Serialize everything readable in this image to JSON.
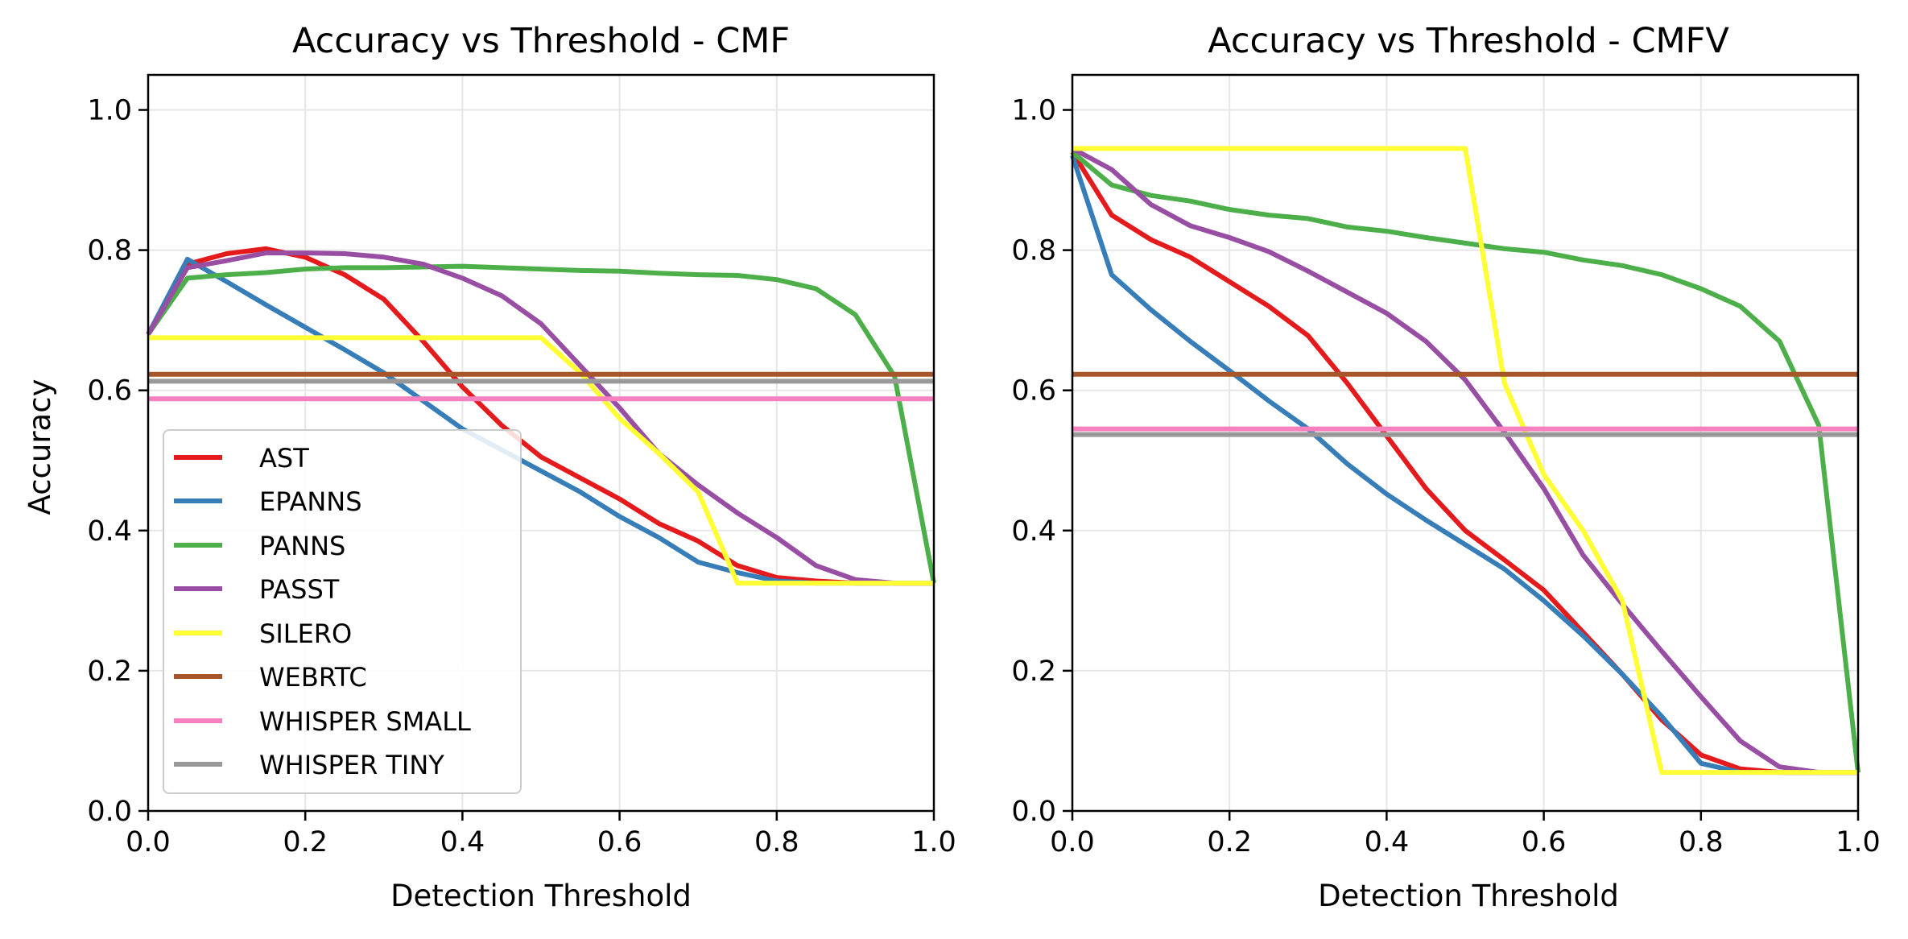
{
  "figure": {
    "ylabel": "Accuracy"
  },
  "chart_data": [
    {
      "type": "line",
      "title": "Accuracy vs Threshold - CMF",
      "xlabel": "Detection Threshold",
      "ylabel": "Accuracy",
      "xlim": [
        0,
        1
      ],
      "ylim": [
        0,
        1.05
      ],
      "xticks": [
        "0.0",
        "0.2",
        "0.4",
        "0.6",
        "0.8",
        "1.0"
      ],
      "yticks": [
        "0.0",
        "0.2",
        "0.4",
        "0.6",
        "0.8",
        "1.0"
      ],
      "grid": true,
      "legend": "lower-left",
      "x": [
        0,
        0.05,
        0.1,
        0.15,
        0.2,
        0.25,
        0.3,
        0.35,
        0.4,
        0.45,
        0.5,
        0.55,
        0.6,
        0.65,
        0.7,
        0.75,
        0.8,
        0.85,
        0.9,
        0.95,
        1.0
      ],
      "series": [
        {
          "name": "AST",
          "color": "#e41a1c",
          "values": [
            0.68,
            0.78,
            0.795,
            0.802,
            0.79,
            0.765,
            0.73,
            0.67,
            0.605,
            0.55,
            0.505,
            0.475,
            0.445,
            0.41,
            0.385,
            0.35,
            0.333,
            0.328,
            0.325,
            0.325,
            0.325
          ]
        },
        {
          "name": "EPANNS",
          "color": "#377eb8",
          "values": [
            0.68,
            0.787,
            0.755,
            0.722,
            0.69,
            0.658,
            0.625,
            0.585,
            0.545,
            0.515,
            0.485,
            0.455,
            0.42,
            0.39,
            0.355,
            0.34,
            0.328,
            0.325,
            0.325,
            0.325,
            0.325
          ]
        },
        {
          "name": "PANNS",
          "color": "#4daf4a",
          "values": [
            0.68,
            0.76,
            0.765,
            0.768,
            0.773,
            0.775,
            0.775,
            0.776,
            0.777,
            0.775,
            0.773,
            0.771,
            0.77,
            0.767,
            0.765,
            0.764,
            0.758,
            0.745,
            0.708,
            0.62,
            0.325
          ]
        },
        {
          "name": "PASST",
          "color": "#984ea3",
          "values": [
            0.68,
            0.775,
            0.785,
            0.796,
            0.796,
            0.795,
            0.79,
            0.78,
            0.76,
            0.735,
            0.695,
            0.635,
            0.575,
            0.51,
            0.465,
            0.425,
            0.39,
            0.35,
            0.33,
            0.325,
            0.325
          ]
        },
        {
          "name": "SILERO",
          "color": "#ffff33",
          "values": [
            0.675,
            0.675,
            0.675,
            0.675,
            0.675,
            0.675,
            0.675,
            0.675,
            0.675,
            0.675,
            0.675,
            0.625,
            0.56,
            0.51,
            0.455,
            0.325,
            0.325,
            0.325,
            0.325,
            0.325,
            0.325
          ]
        },
        {
          "name": "WEBRTC",
          "color": "#a65628",
          "values": [
            0.623,
            0.623,
            0.623,
            0.623,
            0.623,
            0.623,
            0.623,
            0.623,
            0.623,
            0.623,
            0.623,
            0.623,
            0.623,
            0.623,
            0.623,
            0.623,
            0.623,
            0.623,
            0.623,
            0.623,
            0.623
          ]
        },
        {
          "name": "WHISPER SMALL",
          "color": "#f781bf",
          "values": [
            0.588,
            0.588,
            0.588,
            0.588,
            0.588,
            0.588,
            0.588,
            0.588,
            0.588,
            0.588,
            0.588,
            0.588,
            0.588,
            0.588,
            0.588,
            0.588,
            0.588,
            0.588,
            0.588,
            0.588,
            0.588
          ]
        },
        {
          "name": "WHISPER TINY",
          "color": "#999999",
          "values": [
            0.613,
            0.613,
            0.613,
            0.613,
            0.613,
            0.613,
            0.613,
            0.613,
            0.613,
            0.613,
            0.613,
            0.613,
            0.613,
            0.613,
            0.613,
            0.613,
            0.613,
            0.613,
            0.613,
            0.613,
            0.613
          ]
        }
      ]
    },
    {
      "type": "line",
      "title": "Accuracy vs Threshold - CMFV",
      "xlabel": "Detection Threshold",
      "ylabel": "",
      "xlim": [
        0,
        1
      ],
      "ylim": [
        0,
        1.05
      ],
      "xticks": [
        "0.0",
        "0.2",
        "0.4",
        "0.6",
        "0.8",
        "1.0"
      ],
      "yticks": [
        "0.0",
        "0.2",
        "0.4",
        "0.6",
        "0.8",
        "1.0"
      ],
      "grid": true,
      "legend": "none",
      "x": [
        0,
        0.05,
        0.1,
        0.15,
        0.2,
        0.25,
        0.3,
        0.35,
        0.4,
        0.45,
        0.5,
        0.55,
        0.6,
        0.65,
        0.7,
        0.75,
        0.8,
        0.85,
        0.9,
        0.95,
        1.0
      ],
      "series": [
        {
          "name": "AST",
          "color": "#e41a1c",
          "values": [
            0.94,
            0.85,
            0.815,
            0.79,
            0.755,
            0.72,
            0.678,
            0.61,
            0.535,
            0.46,
            0.4,
            0.358,
            0.315,
            0.255,
            0.195,
            0.13,
            0.08,
            0.06,
            0.055,
            0.055,
            0.055
          ]
        },
        {
          "name": "EPANNS",
          "color": "#377eb8",
          "values": [
            0.935,
            0.765,
            0.715,
            0.67,
            0.628,
            0.585,
            0.545,
            0.495,
            0.452,
            0.415,
            0.38,
            0.345,
            0.3,
            0.25,
            0.195,
            0.135,
            0.068,
            0.055,
            0.055,
            0.055,
            0.055
          ]
        },
        {
          "name": "PANNS",
          "color": "#4daf4a",
          "values": [
            0.94,
            0.893,
            0.878,
            0.87,
            0.858,
            0.85,
            0.845,
            0.833,
            0.827,
            0.818,
            0.81,
            0.802,
            0.797,
            0.786,
            0.778,
            0.765,
            0.745,
            0.72,
            0.67,
            0.55,
            0.055
          ]
        },
        {
          "name": "PASST",
          "color": "#984ea3",
          "values": [
            0.945,
            0.915,
            0.865,
            0.835,
            0.818,
            0.798,
            0.77,
            0.74,
            0.71,
            0.67,
            0.615,
            0.54,
            0.46,
            0.365,
            0.295,
            0.228,
            0.163,
            0.1,
            0.063,
            0.055,
            0.055
          ]
        },
        {
          "name": "SILERO",
          "color": "#ffff33",
          "values": [
            0.945,
            0.945,
            0.945,
            0.945,
            0.945,
            0.945,
            0.945,
            0.945,
            0.945,
            0.945,
            0.945,
            0.61,
            0.48,
            0.4,
            0.3,
            0.055,
            0.055,
            0.055,
            0.055,
            0.055,
            0.055
          ]
        },
        {
          "name": "WEBRTC",
          "color": "#a65628",
          "values": [
            0.623,
            0.623,
            0.623,
            0.623,
            0.623,
            0.623,
            0.623,
            0.623,
            0.623,
            0.623,
            0.623,
            0.623,
            0.623,
            0.623,
            0.623,
            0.623,
            0.623,
            0.623,
            0.623,
            0.623,
            0.623
          ]
        },
        {
          "name": "WHISPER SMALL",
          "color": "#f781bf",
          "values": [
            0.545,
            0.545,
            0.545,
            0.545,
            0.545,
            0.545,
            0.545,
            0.545,
            0.545,
            0.545,
            0.545,
            0.545,
            0.545,
            0.545,
            0.545,
            0.545,
            0.545,
            0.545,
            0.545,
            0.545,
            0.545
          ]
        },
        {
          "name": "WHISPER TINY",
          "color": "#999999",
          "values": [
            0.537,
            0.537,
            0.537,
            0.537,
            0.537,
            0.537,
            0.537,
            0.537,
            0.537,
            0.537,
            0.537,
            0.537,
            0.537,
            0.537,
            0.537,
            0.537,
            0.537,
            0.537,
            0.537,
            0.537,
            0.537
          ]
        }
      ]
    }
  ]
}
